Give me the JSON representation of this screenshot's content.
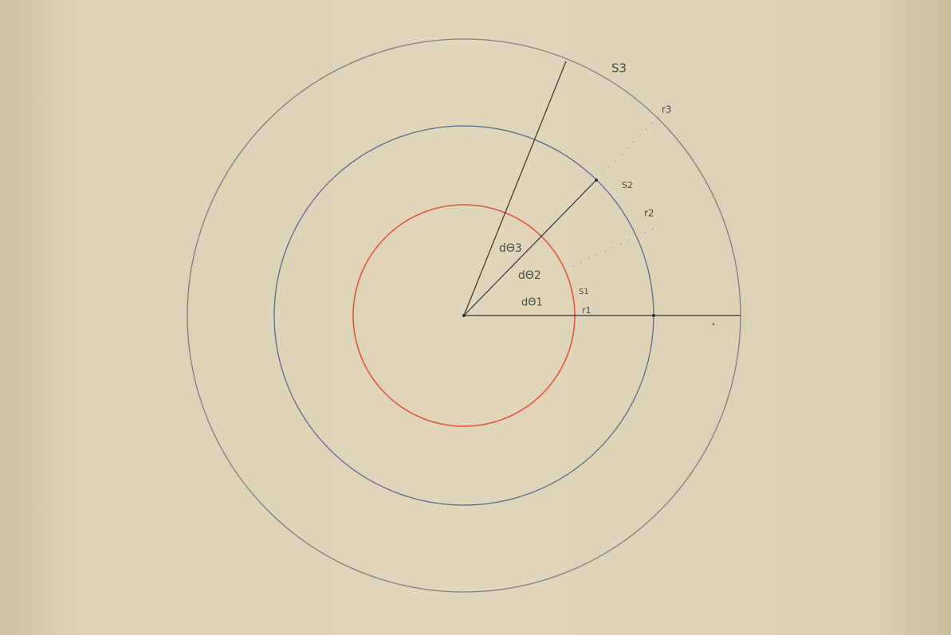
{
  "labels": {
    "s3": "S3",
    "r3": "r3",
    "s2": "S2",
    "r2": "r2",
    "dtheta3": "dΘ3",
    "dtheta2": "dΘ2",
    "dtheta1": "dΘ1",
    "s1": "S1",
    "r1": "r1"
  }
}
